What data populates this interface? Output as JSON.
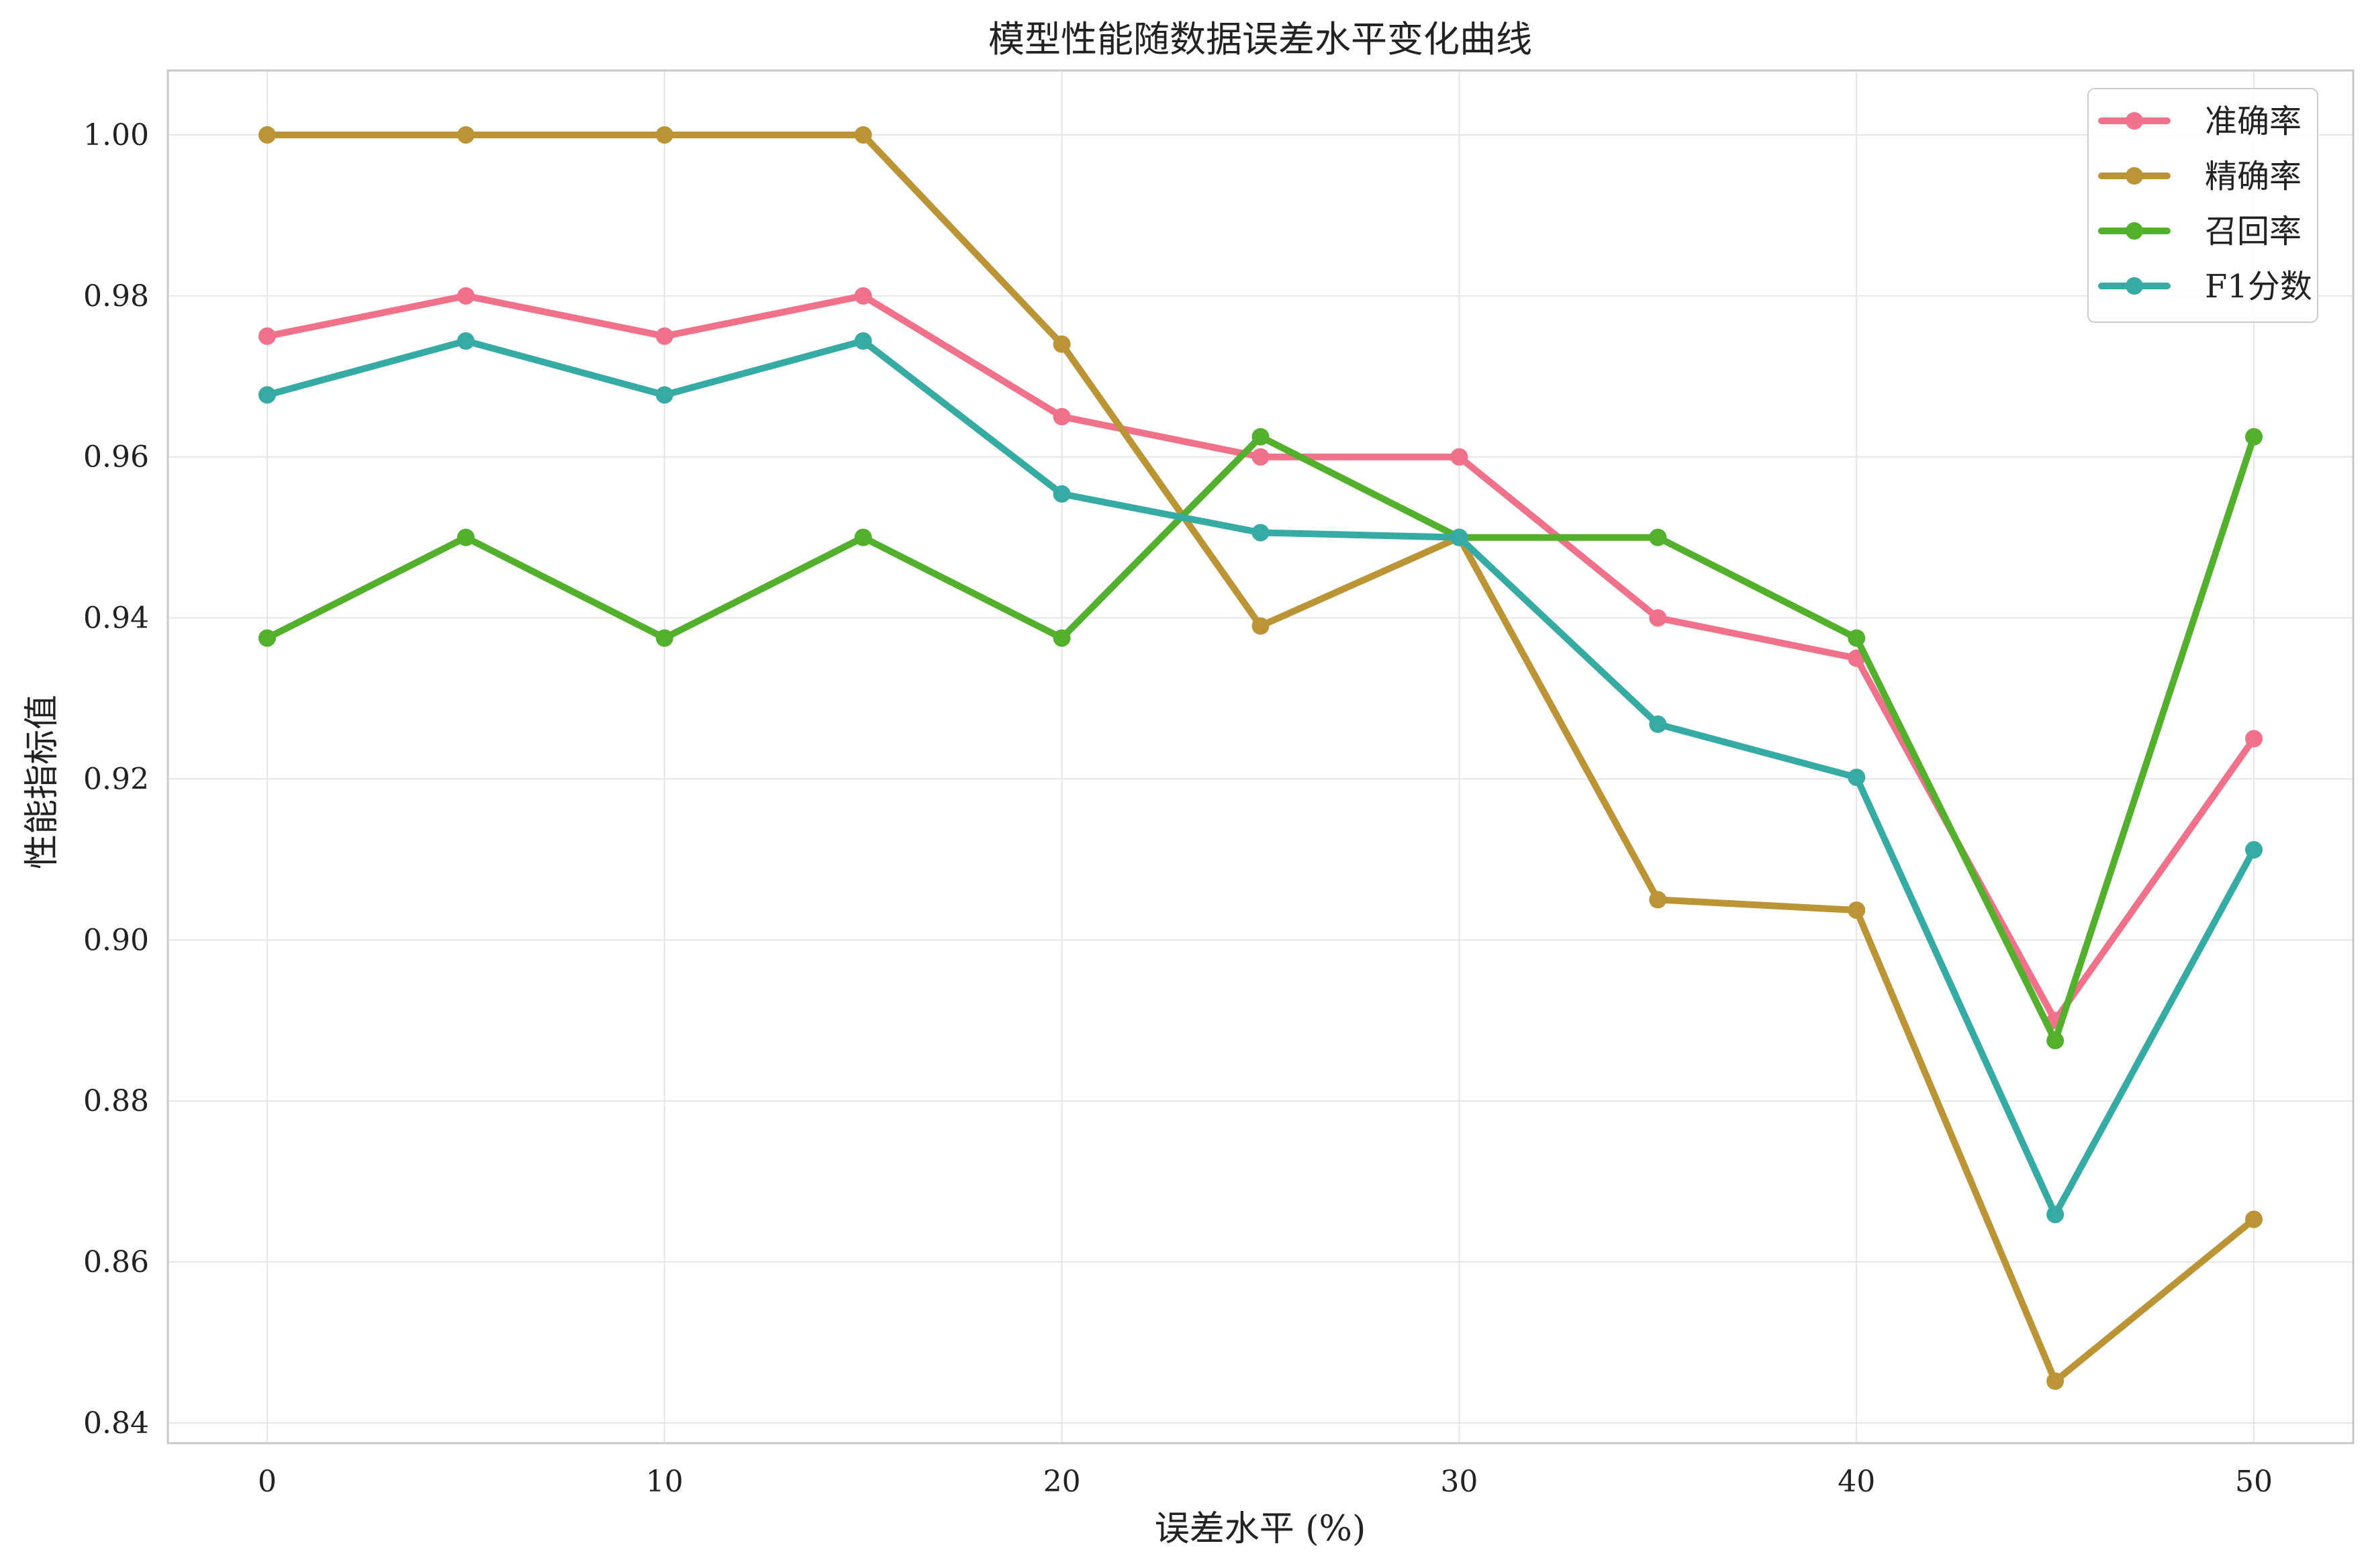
{
  "chart_data": {
    "type": "line",
    "title": "模型性能随数据误差水平变化曲线",
    "xlabel": "误差水平 (%)",
    "ylabel": "性能指标值",
    "x": [
      0,
      5,
      10,
      15,
      20,
      25,
      30,
      35,
      40,
      45,
      50
    ],
    "xlim": [
      -2.5,
      52.5
    ],
    "ylim": [
      0.8375,
      1.008
    ],
    "xticks": [
      0,
      10,
      20,
      30,
      40,
      50
    ],
    "xtick_labels": [
      "0",
      "10",
      "20",
      "30",
      "40",
      "50"
    ],
    "yticks": [
      0.84,
      0.86,
      0.88,
      0.9,
      0.92,
      0.94,
      0.96,
      0.98,
      1.0
    ],
    "ytick_labels": [
      "0.84",
      "0.86",
      "0.88",
      "0.90",
      "0.92",
      "0.94",
      "0.96",
      "0.98",
      "1.00"
    ],
    "grid": true,
    "legend_position": "top-right",
    "series": [
      {
        "name": "准确率",
        "color": "#f0718a",
        "values": [
          0.975,
          0.98,
          0.975,
          0.98,
          0.965,
          0.96,
          0.96,
          0.94,
          0.935,
          0.89,
          0.925
        ]
      },
      {
        "name": "精确率",
        "color": "#bb9535",
        "values": [
          1.0,
          1.0,
          1.0,
          1.0,
          0.974,
          0.939,
          0.95,
          0.905,
          0.9037,
          0.8452,
          0.8653
        ]
      },
      {
        "name": "召回率",
        "color": "#52b02c",
        "values": [
          0.9375,
          0.95,
          0.9375,
          0.95,
          0.9375,
          0.9625,
          0.95,
          0.95,
          0.9375,
          0.8875,
          0.9625
        ]
      },
      {
        "name": "F1分数",
        "color": "#36aba4",
        "values": [
          0.9677,
          0.9744,
          0.9677,
          0.9744,
          0.9554,
          0.9506,
          0.95,
          0.9268,
          0.9202,
          0.8659,
          0.9112
        ]
      }
    ]
  }
}
